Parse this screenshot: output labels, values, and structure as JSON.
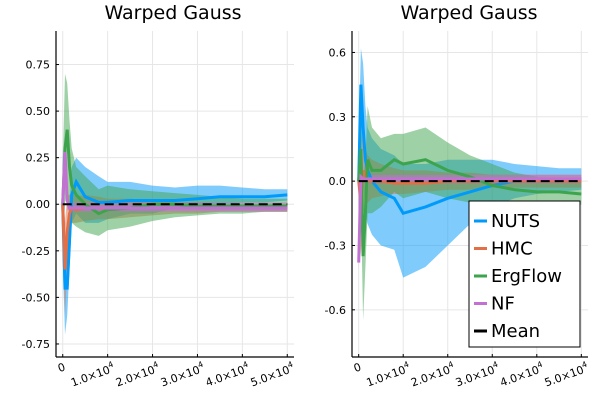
{
  "chart_data": [
    {
      "type": "line",
      "title": "Warped Gauss",
      "xlabel": "",
      "ylabel": "",
      "xlim": [
        -1500,
        51500
      ],
      "ylim": [
        -0.82,
        0.93
      ],
      "yticks": [
        -0.75,
        -0.5,
        -0.25,
        0.0,
        0.25,
        0.5,
        0.75
      ],
      "ytick_labels": [
        "-0.75",
        "-0.50",
        "-0.25",
        "0.00",
        "0.25",
        "0.50",
        "0.75"
      ],
      "xticks": [
        0,
        10000,
        20000,
        30000,
        40000,
        50000
      ],
      "xtick_labels": [
        {
          "base": "0",
          "exp": ""
        },
        {
          "base": "1.0×10",
          "exp": "4"
        },
        {
          "base": "2.0×10",
          "exp": "4"
        },
        {
          "base": "3.0×10",
          "exp": "4"
        },
        {
          "base": "4.0×10",
          "exp": "4"
        },
        {
          "base": "5.0×10",
          "exp": "4"
        }
      ],
      "grid": true,
      "legend": false,
      "series": [
        {
          "name": "NUTS",
          "color": "#009AFA",
          "x": [
            0,
            500,
            1000,
            1500,
            2000,
            3000,
            5000,
            8000,
            10000,
            15000,
            20000,
            25000,
            30000,
            35000,
            40000,
            45000,
            50000
          ],
          "mean": [
            0.0,
            -0.45,
            -0.45,
            -0.2,
            0.05,
            0.12,
            0.04,
            0.01,
            0.01,
            0.02,
            0.02,
            0.02,
            0.03,
            0.04,
            0.04,
            0.04,
            0.05
          ],
          "lower": [
            -0.3,
            -0.7,
            -0.6,
            -0.35,
            -0.1,
            -0.05,
            -0.1,
            -0.1,
            -0.08,
            -0.05,
            -0.05,
            -0.02,
            0.0,
            0.0,
            0.01,
            0.01,
            0.02
          ],
          "upper": [
            0.3,
            -0.2,
            -0.25,
            0.0,
            0.2,
            0.25,
            0.2,
            0.15,
            0.12,
            0.12,
            0.1,
            0.09,
            0.1,
            0.1,
            0.09,
            0.08,
            0.08
          ]
        },
        {
          "name": "HMC",
          "color": "#E26F46",
          "x": [
            0,
            500,
            1000,
            1500,
            2000,
            3000,
            5000,
            8000,
            10000,
            15000,
            20000,
            25000,
            30000,
            35000,
            40000,
            45000,
            50000
          ],
          "mean": [
            0.0,
            -0.35,
            -0.15,
            -0.05,
            -0.02,
            -0.03,
            -0.02,
            -0.02,
            -0.03,
            -0.02,
            -0.02,
            -0.02,
            -0.02,
            -0.02,
            -0.02,
            -0.02,
            -0.02
          ],
          "lower": [
            -0.2,
            -0.6,
            -0.35,
            -0.15,
            -0.1,
            -0.1,
            -0.09,
            -0.08,
            -0.08,
            -0.07,
            -0.06,
            -0.05,
            -0.05,
            -0.04,
            -0.04,
            -0.04,
            -0.04
          ],
          "upper": [
            0.2,
            -0.1,
            0.05,
            0.05,
            0.06,
            0.04,
            0.05,
            0.04,
            0.03,
            0.03,
            0.02,
            0.01,
            0.01,
            0.0,
            0.0,
            0.0,
            0.0
          ]
        },
        {
          "name": "ErgFlow",
          "color": "#3DA44D",
          "x": [
            0,
            500,
            1000,
            1500,
            2000,
            3000,
            5000,
            8000,
            10000,
            15000,
            20000,
            25000,
            30000,
            35000,
            40000,
            45000,
            50000
          ],
          "mean": [
            0.0,
            0.3,
            0.4,
            0.2,
            0.1,
            0.05,
            0.0,
            -0.05,
            -0.03,
            -0.02,
            0.0,
            0.0,
            -0.01,
            -0.01,
            -0.01,
            -0.01,
            -0.01
          ],
          "lower": [
            -0.2,
            0.0,
            0.1,
            -0.05,
            -0.1,
            -0.12,
            -0.15,
            -0.17,
            -0.14,
            -0.12,
            -0.09,
            -0.07,
            -0.06,
            -0.05,
            -0.05,
            -0.04,
            -0.04
          ],
          "upper": [
            0.2,
            0.7,
            0.65,
            0.45,
            0.3,
            0.2,
            0.15,
            0.08,
            0.1,
            0.08,
            0.07,
            0.06,
            0.05,
            0.04,
            0.03,
            0.03,
            0.03
          ]
        },
        {
          "name": "NF",
          "color": "#C271D2",
          "x": [
            0,
            500,
            1000,
            1500,
            2000,
            3000,
            5000,
            8000,
            10000,
            15000,
            20000,
            25000,
            30000,
            35000,
            40000,
            45000,
            50000
          ],
          "mean": [
            0.0,
            0.28,
            0.02,
            -0.02,
            -0.02,
            -0.02,
            -0.02,
            -0.02,
            -0.02,
            -0.02,
            -0.02,
            -0.02,
            -0.02,
            -0.02,
            -0.02,
            -0.02,
            -0.02
          ],
          "lower": [
            0.0,
            0.2,
            -0.03,
            -0.04,
            -0.04,
            -0.04,
            -0.04,
            -0.04,
            -0.04,
            -0.04,
            -0.04,
            -0.04,
            -0.04,
            -0.04,
            -0.04,
            -0.04,
            -0.04
          ],
          "upper": [
            0.0,
            0.35,
            0.05,
            0.01,
            0.01,
            0.01,
            0.01,
            0.01,
            0.01,
            0.01,
            0.01,
            0.01,
            0.01,
            0.01,
            0.01,
            0.01,
            0.01
          ]
        },
        {
          "name": "Mean",
          "color": "#000000",
          "dashed": true,
          "x": [
            0,
            50000
          ],
          "mean": [
            0.0,
            0.0
          ]
        }
      ]
    },
    {
      "type": "line",
      "title": "Warped Gauss",
      "xlabel": "",
      "ylabel": "",
      "xlim": [
        -1500,
        51500
      ],
      "ylim": [
        -0.82,
        0.7
      ],
      "yticks": [
        -0.6,
        -0.3,
        0.0,
        0.3,
        0.6
      ],
      "ytick_labels": [
        "-0.6",
        "-0.3",
        "0.0",
        "0.3",
        "0.6"
      ],
      "xticks": [
        0,
        10000,
        20000,
        30000,
        40000,
        50000
      ],
      "xtick_labels": [
        {
          "base": "0",
          "exp": ""
        },
        {
          "base": "1.0×10",
          "exp": "4"
        },
        {
          "base": "2.0×10",
          "exp": "4"
        },
        {
          "base": "3.0×10",
          "exp": "4"
        },
        {
          "base": "4.0×10",
          "exp": "4"
        },
        {
          "base": "5.0×10",
          "exp": "4"
        }
      ],
      "grid": true,
      "legend": true,
      "legend_position": "bottom-right",
      "series": [
        {
          "name": "NUTS",
          "color": "#009AFA",
          "x": [
            0,
            500,
            1000,
            1500,
            2000,
            3000,
            5000,
            8000,
            10000,
            15000,
            20000,
            25000,
            30000,
            35000,
            40000,
            45000,
            50000
          ],
          "mean": [
            0.0,
            0.45,
            0.25,
            0.1,
            0.05,
            0.0,
            -0.05,
            -0.08,
            -0.15,
            -0.12,
            -0.08,
            -0.05,
            -0.02,
            0.0,
            0.0,
            0.0,
            0.01
          ],
          "lower": [
            -0.2,
            0.2,
            0.0,
            -0.15,
            -0.2,
            -0.25,
            -0.3,
            -0.32,
            -0.45,
            -0.4,
            -0.3,
            -0.2,
            -0.12,
            -0.08,
            -0.06,
            -0.05,
            -0.04
          ],
          "upper": [
            0.2,
            0.62,
            0.55,
            0.35,
            0.25,
            0.2,
            0.15,
            0.12,
            0.08,
            0.08,
            0.1,
            0.1,
            0.1,
            0.08,
            0.07,
            0.06,
            0.06
          ]
        },
        {
          "name": "HMC",
          "color": "#E26F46",
          "x": [
            0,
            500,
            1000,
            1500,
            2000,
            3000,
            5000,
            8000,
            10000,
            15000,
            20000,
            25000,
            30000,
            35000,
            40000,
            45000,
            50000
          ],
          "mean": [
            0.0,
            -0.1,
            0.05,
            0.02,
            0.0,
            0.0,
            0.0,
            -0.01,
            -0.01,
            -0.01,
            0.0,
            0.0,
            0.0,
            0.0,
            0.0,
            0.0,
            0.0
          ],
          "lower": [
            -0.15,
            -0.35,
            -0.15,
            -0.12,
            -0.1,
            -0.08,
            -0.07,
            -0.06,
            -0.06,
            -0.05,
            -0.04,
            -0.04,
            -0.03,
            -0.03,
            -0.03,
            -0.03,
            -0.03
          ],
          "upper": [
            0.15,
            0.15,
            0.25,
            0.15,
            0.12,
            0.1,
            0.08,
            0.06,
            0.05,
            0.05,
            0.04,
            0.04,
            0.03,
            0.03,
            0.03,
            0.03,
            0.03
          ]
        },
        {
          "name": "ErgFlow",
          "color": "#3DA44D",
          "x": [
            0,
            500,
            1000,
            1500,
            2000,
            3000,
            5000,
            8000,
            10000,
            15000,
            20000,
            25000,
            30000,
            35000,
            40000,
            45000,
            50000
          ],
          "mean": [
            0.0,
            0.15,
            -0.35,
            -0.15,
            0.1,
            0.05,
            0.05,
            0.1,
            0.08,
            0.1,
            0.05,
            0.02,
            -0.02,
            -0.04,
            -0.05,
            -0.05,
            -0.06
          ],
          "lower": [
            -0.2,
            -0.1,
            -0.65,
            -0.4,
            -0.15,
            -0.15,
            -0.12,
            -0.05,
            -0.08,
            -0.05,
            -0.08,
            -0.1,
            -0.12,
            -0.12,
            -0.12,
            -0.11,
            -0.11
          ],
          "upper": [
            0.2,
            0.4,
            0.0,
            0.1,
            0.35,
            0.25,
            0.2,
            0.22,
            0.22,
            0.25,
            0.18,
            0.12,
            0.08,
            0.04,
            0.02,
            0.0,
            0.0
          ]
        },
        {
          "name": "NF",
          "color": "#C271D2",
          "x": [
            0,
            500,
            1000,
            1500,
            2000,
            3000,
            5000,
            8000,
            10000,
            15000,
            20000,
            25000,
            30000,
            35000,
            40000,
            45000,
            50000
          ],
          "mean": [
            -0.38,
            0.02,
            0.01,
            0.01,
            0.01,
            0.01,
            0.01,
            0.01,
            0.01,
            0.01,
            0.01,
            0.01,
            0.01,
            0.01,
            0.01,
            0.01,
            0.01
          ],
          "lower": [
            -0.42,
            -0.02,
            -0.01,
            -0.01,
            -0.01,
            -0.01,
            -0.01,
            -0.01,
            -0.01,
            -0.01,
            -0.01,
            -0.01,
            -0.01,
            -0.01,
            -0.01,
            -0.01,
            -0.01
          ],
          "upper": [
            -0.3,
            0.06,
            0.03,
            0.03,
            0.03,
            0.03,
            0.03,
            0.03,
            0.03,
            0.03,
            0.03,
            0.03,
            0.03,
            0.03,
            0.03,
            0.03,
            0.03
          ]
        },
        {
          "name": "Mean",
          "color": "#000000",
          "dashed": true,
          "x": [
            0,
            50000
          ],
          "mean": [
            0.0,
            0.0
          ]
        }
      ]
    }
  ]
}
